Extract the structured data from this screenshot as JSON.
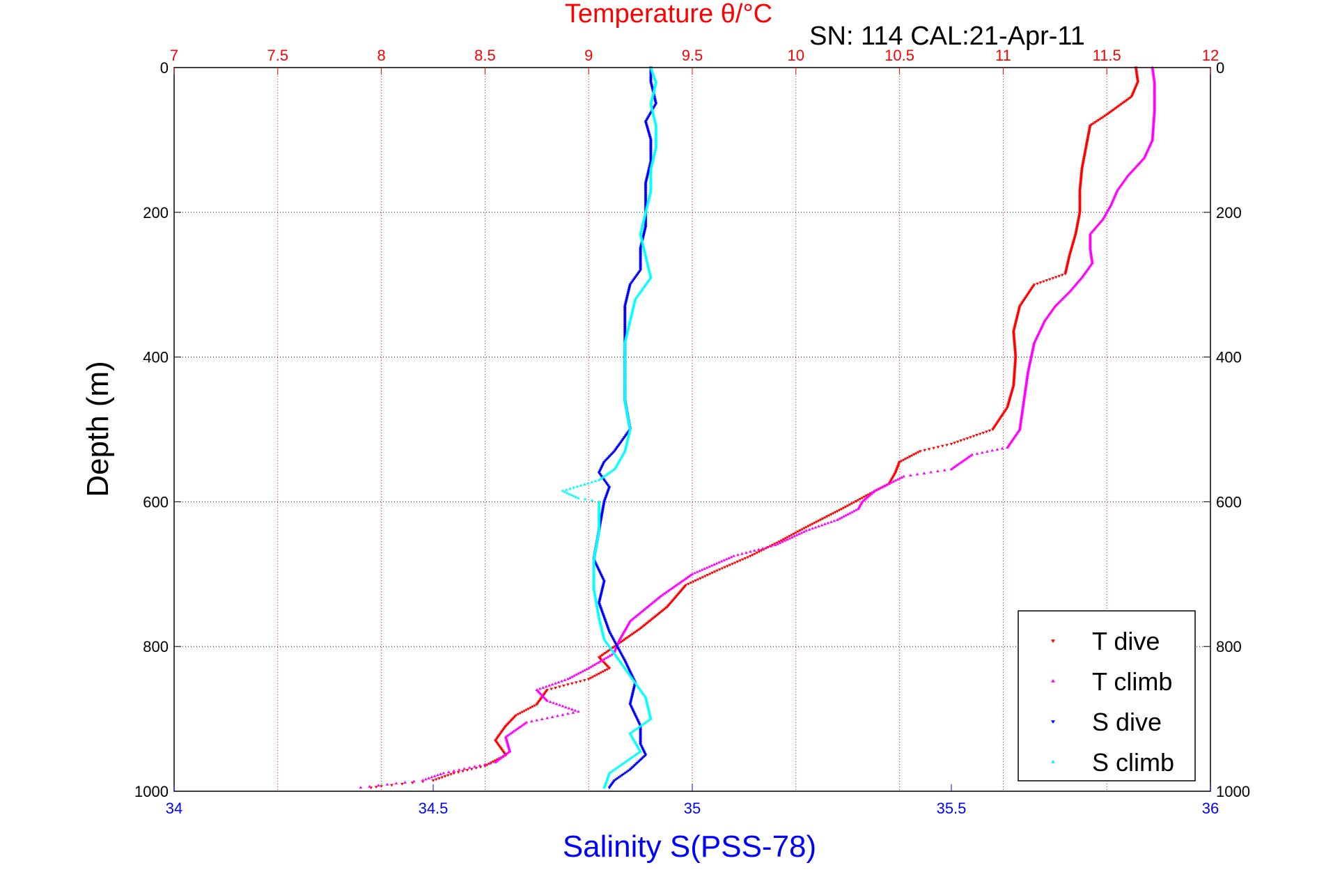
{
  "chart_data": {
    "type": "scatter",
    "title": "Temperature θ/°C",
    "subtitle": "SN: 114  CAL:21-Apr-11",
    "xlabel": "Salinity S(PSS-78)",
    "ylabel": "Depth (m)",
    "x_top": {
      "label": "Temperature θ/°C",
      "lim": [
        7,
        12
      ],
      "ticks": [
        "7",
        "7.5",
        "8",
        "8.5",
        "9",
        "9.5",
        "10",
        "10.5",
        "11",
        "11.5",
        "12"
      ],
      "color": "#ff0000"
    },
    "x_bottom": {
      "label": "Salinity S(PSS-78)",
      "lim": [
        34,
        36
      ],
      "ticks": [
        "34",
        "34.5",
        "35",
        "35.5",
        "36"
      ],
      "color": "#0000ff"
    },
    "y": {
      "lim": [
        0,
        1000
      ],
      "reversed": true,
      "ticks": [
        "0",
        "200",
        "400",
        "600",
        "800",
        "1000"
      ]
    },
    "grid": true,
    "legend_position": "bottom-right",
    "series": [
      {
        "name": "T dive",
        "axis": "temperature",
        "color": "#ff0000",
        "marker": "triangle-down",
        "points": [
          [
            11.64,
            0
          ],
          [
            11.65,
            20
          ],
          [
            11.62,
            40
          ],
          [
            11.5,
            65
          ],
          [
            11.42,
            80
          ],
          [
            11.4,
            110
          ],
          [
            11.38,
            140
          ],
          [
            11.37,
            170
          ],
          [
            11.37,
            200
          ],
          [
            11.35,
            230
          ],
          [
            11.32,
            260
          ],
          [
            11.3,
            285
          ],
          [
            11.15,
            300
          ],
          [
            11.08,
            330
          ],
          [
            11.05,
            365
          ],
          [
            11.06,
            400
          ],
          [
            11.05,
            440
          ],
          [
            11.02,
            470
          ],
          [
            10.95,
            500
          ],
          [
            10.75,
            520
          ],
          [
            10.6,
            530
          ],
          [
            10.5,
            545
          ],
          [
            10.48,
            560
          ],
          [
            10.45,
            575
          ],
          [
            10.35,
            590
          ],
          [
            10.22,
            610
          ],
          [
            10.05,
            635
          ],
          [
            9.92,
            655
          ],
          [
            9.78,
            675
          ],
          [
            9.62,
            695
          ],
          [
            9.47,
            715
          ],
          [
            9.38,
            745
          ],
          [
            9.25,
            775
          ],
          [
            9.15,
            795
          ],
          [
            9.05,
            815
          ],
          [
            9.1,
            830
          ],
          [
            9.0,
            845
          ],
          [
            8.8,
            860
          ],
          [
            8.75,
            880
          ],
          [
            8.65,
            895
          ],
          [
            8.6,
            910
          ],
          [
            8.55,
            930
          ],
          [
            8.6,
            950
          ],
          [
            8.5,
            965
          ],
          [
            8.35,
            975
          ],
          [
            8.25,
            985
          ],
          [
            8.0,
            993
          ],
          [
            7.95,
            995
          ]
        ]
      },
      {
        "name": "T climb",
        "axis": "temperature",
        "color": "#ff00ff",
        "marker": "triangle-up",
        "points": [
          [
            11.72,
            0
          ],
          [
            11.73,
            20
          ],
          [
            11.73,
            60
          ],
          [
            11.72,
            100
          ],
          [
            11.68,
            125
          ],
          [
            11.6,
            150
          ],
          [
            11.55,
            170
          ],
          [
            11.52,
            190
          ],
          [
            11.48,
            210
          ],
          [
            11.42,
            230
          ],
          [
            11.42,
            250
          ],
          [
            11.43,
            270
          ],
          [
            11.38,
            290
          ],
          [
            11.32,
            310
          ],
          [
            11.25,
            330
          ],
          [
            11.2,
            350
          ],
          [
            11.15,
            380
          ],
          [
            11.12,
            420
          ],
          [
            11.1,
            460
          ],
          [
            11.08,
            500
          ],
          [
            11.02,
            525
          ],
          [
            10.85,
            535
          ],
          [
            10.8,
            545
          ],
          [
            10.75,
            555
          ],
          [
            10.52,
            565
          ],
          [
            10.45,
            575
          ],
          [
            10.38,
            585
          ],
          [
            10.32,
            600
          ],
          [
            10.3,
            610
          ],
          [
            10.2,
            625
          ],
          [
            10.05,
            640
          ],
          [
            9.9,
            660
          ],
          [
            9.7,
            675
          ],
          [
            9.5,
            700
          ],
          [
            9.35,
            730
          ],
          [
            9.2,
            765
          ],
          [
            9.15,
            790
          ],
          [
            9.12,
            810
          ],
          [
            9.0,
            830
          ],
          [
            8.9,
            845
          ],
          [
            8.75,
            860
          ],
          [
            8.8,
            875
          ],
          [
            8.95,
            890
          ],
          [
            8.7,
            905
          ],
          [
            8.6,
            925
          ],
          [
            8.62,
            945
          ],
          [
            8.55,
            960
          ],
          [
            8.3,
            975
          ],
          [
            8.2,
            985
          ],
          [
            7.9,
            995
          ]
        ]
      },
      {
        "name": "S dive",
        "axis": "salinity",
        "color": "#0000ff",
        "marker": "triangle-down",
        "points": [
          [
            34.92,
            0
          ],
          [
            34.92,
            20
          ],
          [
            34.93,
            50
          ],
          [
            34.91,
            75
          ],
          [
            34.92,
            100
          ],
          [
            34.92,
            130
          ],
          [
            34.91,
            160
          ],
          [
            34.91,
            190
          ],
          [
            34.91,
            220
          ],
          [
            34.9,
            250
          ],
          [
            34.9,
            280
          ],
          [
            34.88,
            300
          ],
          [
            34.87,
            330
          ],
          [
            34.87,
            360
          ],
          [
            34.87,
            390
          ],
          [
            34.87,
            420
          ],
          [
            34.87,
            460
          ],
          [
            34.88,
            500
          ],
          [
            34.85,
            530
          ],
          [
            34.83,
            545
          ],
          [
            34.82,
            560
          ],
          [
            34.84,
            580
          ],
          [
            34.83,
            600
          ],
          [
            34.82,
            640
          ],
          [
            34.81,
            680
          ],
          [
            34.83,
            710
          ],
          [
            34.82,
            740
          ],
          [
            34.84,
            780
          ],
          [
            34.87,
            820
          ],
          [
            34.89,
            850
          ],
          [
            34.88,
            880
          ],
          [
            34.9,
            910
          ],
          [
            34.9,
            935
          ],
          [
            34.91,
            950
          ],
          [
            34.88,
            970
          ],
          [
            34.85,
            985
          ],
          [
            34.84,
            995
          ]
        ]
      },
      {
        "name": "S climb",
        "axis": "salinity",
        "color": "#00ffff",
        "marker": "triangle-up",
        "points": [
          [
            34.92,
            0
          ],
          [
            34.93,
            20
          ],
          [
            34.92,
            50
          ],
          [
            34.93,
            80
          ],
          [
            34.93,
            110
          ],
          [
            34.92,
            140
          ],
          [
            34.92,
            170
          ],
          [
            34.91,
            200
          ],
          [
            34.9,
            230
          ],
          [
            34.91,
            260
          ],
          [
            34.92,
            290
          ],
          [
            34.89,
            320
          ],
          [
            34.88,
            350
          ],
          [
            34.87,
            380
          ],
          [
            34.87,
            420
          ],
          [
            34.87,
            460
          ],
          [
            34.88,
            500
          ],
          [
            34.87,
            530
          ],
          [
            34.85,
            555
          ],
          [
            34.82,
            570
          ],
          [
            34.75,
            585
          ],
          [
            34.78,
            595
          ],
          [
            34.82,
            600
          ],
          [
            34.82,
            640
          ],
          [
            34.81,
            680
          ],
          [
            34.81,
            720
          ],
          [
            34.82,
            760
          ],
          [
            34.83,
            790
          ],
          [
            34.85,
            810
          ],
          [
            34.88,
            840
          ],
          [
            34.91,
            870
          ],
          [
            34.92,
            900
          ],
          [
            34.88,
            920
          ],
          [
            34.9,
            945
          ],
          [
            34.87,
            960
          ],
          [
            34.84,
            975
          ],
          [
            34.83,
            995
          ]
        ]
      }
    ]
  }
}
